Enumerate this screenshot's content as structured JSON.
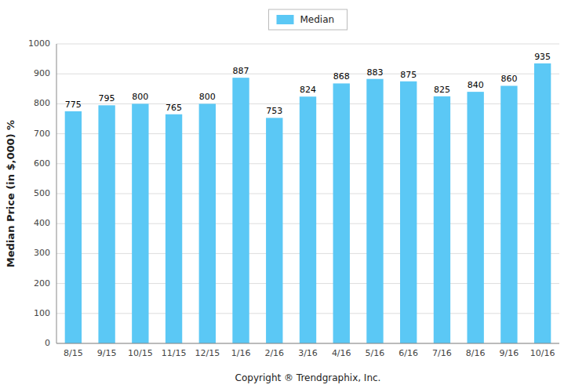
{
  "chart_data": {
    "type": "bar",
    "categories": [
      "8/15",
      "9/15",
      "10/15",
      "11/15",
      "12/15",
      "1/16",
      "2/16",
      "3/16",
      "4/16",
      "5/16",
      "6/16",
      "7/16",
      "8/16",
      "9/16",
      "10/16"
    ],
    "series": [
      {
        "name": "Median",
        "color": "#5BC8F5",
        "values": [
          775,
          795,
          800,
          765,
          800,
          887,
          753,
          824,
          868,
          883,
          875,
          825,
          840,
          860,
          935
        ]
      }
    ],
    "ylabel": "Median Price (in $,000) %",
    "xlabel": "Copyright ® Trendgraphix, Inc.",
    "ylim": [
      0,
      1000
    ],
    "yticks": [
      0,
      100,
      200,
      300,
      400,
      500,
      600,
      700,
      800,
      900,
      1000
    ],
    "grid": true,
    "data_labels": true,
    "legend": "top"
  }
}
